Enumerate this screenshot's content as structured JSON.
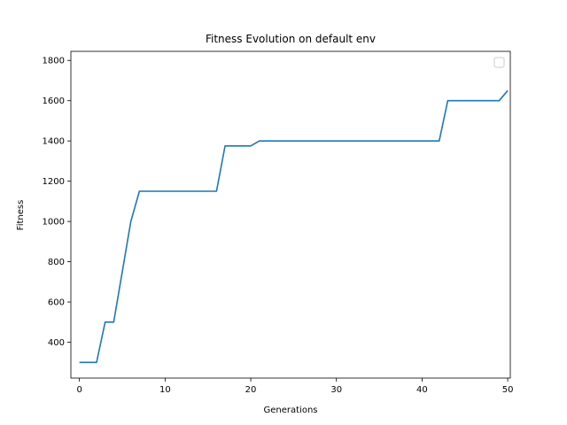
{
  "chart_data": {
    "type": "line",
    "title": "Fitness Evolution on default env",
    "xlabel": "Generations",
    "ylabel": "Fitness",
    "xlim": [
      -1,
      50.3
    ],
    "ylim": [
      222,
      1845
    ],
    "xticks": [
      0,
      10,
      20,
      30,
      40,
      50
    ],
    "yticks": [
      400,
      600,
      800,
      1000,
      1200,
      1400,
      1600,
      1800
    ],
    "grid": false,
    "legend": "top-right",
    "series": [
      {
        "color": "#1f77b4",
        "x": [
          0,
          1,
          2,
          3,
          4,
          5,
          6,
          7,
          8,
          9,
          10,
          11,
          12,
          13,
          14,
          15,
          16,
          17,
          18,
          19,
          20,
          21,
          22,
          23,
          24,
          25,
          26,
          27,
          28,
          29,
          30,
          31,
          32,
          33,
          34,
          35,
          36,
          37,
          38,
          39,
          40,
          41,
          42,
          43,
          44,
          45,
          46,
          47,
          48,
          49,
          50
        ],
        "y": [
          300,
          300,
          300,
          500,
          500,
          750,
          1000,
          1150,
          1150,
          1150,
          1150,
          1150,
          1150,
          1150,
          1150,
          1150,
          1150,
          1375,
          1375,
          1375,
          1375,
          1400,
          1400,
          1400,
          1400,
          1400,
          1400,
          1400,
          1400,
          1400,
          1400,
          1400,
          1400,
          1400,
          1400,
          1400,
          1400,
          1400,
          1400,
          1400,
          1400,
          1400,
          1400,
          1600,
          1600,
          1600,
          1600,
          1600,
          1600,
          1600,
          1650
        ]
      }
    ]
  }
}
